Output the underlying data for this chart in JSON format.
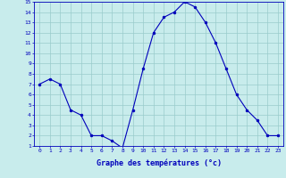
{
  "hours": [
    0,
    1,
    2,
    3,
    4,
    5,
    6,
    7,
    8,
    9,
    10,
    11,
    12,
    13,
    14,
    15,
    16,
    17,
    18,
    19,
    20,
    21,
    22,
    23
  ],
  "temps": [
    7.0,
    7.5,
    7.0,
    4.5,
    4.0,
    2.0,
    2.0,
    1.5,
    0.8,
    4.5,
    8.5,
    12.0,
    13.5,
    14.0,
    15.0,
    14.5,
    13.0,
    11.0,
    8.5,
    6.0,
    4.5,
    3.5,
    2.0,
    2.0
  ],
  "line_color": "#0000bb",
  "marker": "o",
  "marker_size": 2.0,
  "bg_color": "#c8ecec",
  "grid_color": "#99cccc",
  "xlabel": "Graphe des températures (°c)",
  "xlabel_color": "#0000bb",
  "tick_color": "#0000bb",
  "ylim": [
    1,
    15
  ],
  "xlim": [
    -0.5,
    23.5
  ],
  "yticks": [
    1,
    2,
    3,
    4,
    5,
    6,
    7,
    8,
    9,
    10,
    11,
    12,
    13,
    14,
    15
  ],
  "xticks": [
    0,
    1,
    2,
    3,
    4,
    5,
    6,
    7,
    8,
    9,
    10,
    11,
    12,
    13,
    14,
    15,
    16,
    17,
    18,
    19,
    20,
    21,
    22,
    23
  ]
}
